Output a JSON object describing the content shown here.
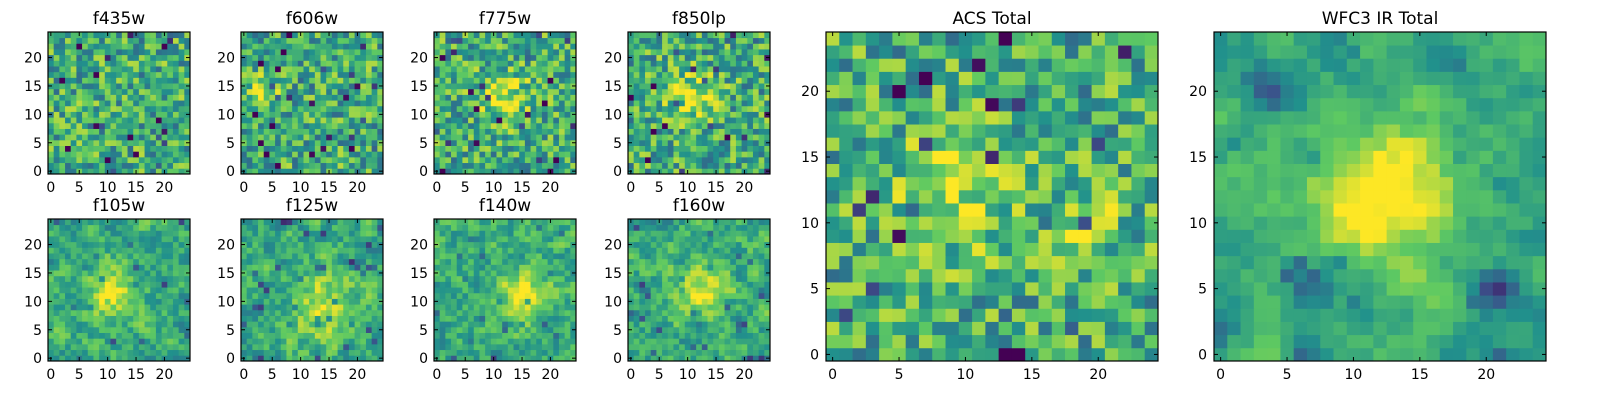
{
  "figure": {
    "colormap": [
      "#440154",
      "#3b528b",
      "#21918c",
      "#5ec962",
      "#fde725"
    ]
  },
  "chart_data": [
    {
      "type": "heatmap",
      "title": "f435w",
      "grid": [
        25,
        25
      ],
      "xlim": [
        0,
        24
      ],
      "ylim": [
        0,
        24
      ],
      "xticks": [
        0,
        5,
        10,
        15,
        20
      ],
      "yticks": [
        0,
        5,
        10,
        15,
        20
      ],
      "seed": 11,
      "smooth": 0,
      "blobs": []
    },
    {
      "type": "heatmap",
      "title": "f606w",
      "grid": [
        25,
        25
      ],
      "xlim": [
        0,
        24
      ],
      "ylim": [
        0,
        24
      ],
      "xticks": [
        0,
        5,
        10,
        15,
        20
      ],
      "yticks": [
        0,
        5,
        10,
        15,
        20
      ],
      "seed": 23,
      "smooth": 0,
      "blobs": [
        {
          "x": 4,
          "y": 14,
          "amp": 0.25,
          "sigma": 2
        }
      ]
    },
    {
      "type": "heatmap",
      "title": "f775w",
      "grid": [
        25,
        25
      ],
      "xlim": [
        0,
        24
      ],
      "ylim": [
        0,
        24
      ],
      "xticks": [
        0,
        5,
        10,
        15,
        20
      ],
      "yticks": [
        0,
        5,
        10,
        15,
        20
      ],
      "seed": 37,
      "smooth": 0,
      "blobs": [
        {
          "x": 12,
          "y": 13,
          "amp": 0.3,
          "sigma": 3
        }
      ]
    },
    {
      "type": "heatmap",
      "title": "f850lp",
      "grid": [
        25,
        25
      ],
      "xlim": [
        0,
        24
      ],
      "ylim": [
        0,
        24
      ],
      "xticks": [
        0,
        5,
        10,
        15,
        20
      ],
      "yticks": [
        0,
        5,
        10,
        15,
        20
      ],
      "seed": 41,
      "smooth": 0,
      "blobs": [
        {
          "x": 11,
          "y": 13,
          "amp": 0.3,
          "sigma": 3
        }
      ]
    },
    {
      "type": "heatmap",
      "title": "f105w",
      "grid": [
        25,
        25
      ],
      "xlim": [
        0,
        24
      ],
      "ylim": [
        0,
        24
      ],
      "xticks": [
        0,
        5,
        10,
        15,
        20
      ],
      "yticks": [
        0,
        5,
        10,
        15,
        20
      ],
      "seed": 53,
      "smooth": 1,
      "blobs": [
        {
          "x": 11,
          "y": 11,
          "amp": 0.35,
          "sigma": 3
        }
      ]
    },
    {
      "type": "heatmap",
      "title": "f125w",
      "grid": [
        25,
        25
      ],
      "xlim": [
        0,
        24
      ],
      "ylim": [
        0,
        24
      ],
      "xticks": [
        0,
        5,
        10,
        15,
        20
      ],
      "yticks": [
        0,
        5,
        10,
        15,
        20
      ],
      "seed": 67,
      "smooth": 1,
      "blobs": [
        {
          "x": 14,
          "y": 9,
          "amp": 0.3,
          "sigma": 4
        }
      ]
    },
    {
      "type": "heatmap",
      "title": "f140w",
      "grid": [
        25,
        25
      ],
      "xlim": [
        0,
        24
      ],
      "ylim": [
        0,
        24
      ],
      "xticks": [
        0,
        5,
        10,
        15,
        20
      ],
      "yticks": [
        0,
        5,
        10,
        15,
        20
      ],
      "seed": 79,
      "smooth": 1,
      "blobs": [
        {
          "x": 15,
          "y": 11,
          "amp": 0.35,
          "sigma": 3
        }
      ]
    },
    {
      "type": "heatmap",
      "title": "f160w",
      "grid": [
        25,
        25
      ],
      "xlim": [
        0,
        24
      ],
      "ylim": [
        0,
        24
      ],
      "xticks": [
        0,
        5,
        10,
        15,
        20
      ],
      "yticks": [
        0,
        5,
        10,
        15,
        20
      ],
      "seed": 83,
      "smooth": 1,
      "blobs": [
        {
          "x": 12,
          "y": 12,
          "amp": 0.35,
          "sigma": 3
        }
      ]
    },
    {
      "type": "heatmap",
      "title": "ACS Total",
      "grid": [
        25,
        25
      ],
      "xlim": [
        0,
        24
      ],
      "ylim": [
        0,
        24
      ],
      "xticks": [
        0,
        5,
        10,
        15,
        20
      ],
      "yticks": [
        0,
        5,
        10,
        15,
        20
      ],
      "seed": 97,
      "smooth": 0,
      "blobs": [
        {
          "x": 9,
          "y": 12,
          "amp": 0.3,
          "sigma": 3
        },
        {
          "x": 19,
          "y": 10,
          "amp": 0.25,
          "sigma": 2
        }
      ]
    },
    {
      "type": "heatmap",
      "title": "WFC3 IR Total",
      "grid": [
        25,
        25
      ],
      "xlim": [
        0,
        24
      ],
      "ylim": [
        0,
        24
      ],
      "xticks": [
        0,
        5,
        10,
        15,
        20
      ],
      "yticks": [
        0,
        5,
        10,
        15,
        20
      ],
      "seed": 101,
      "smooth": 2,
      "blobs": [
        {
          "x": 12,
          "y": 12,
          "amp": 0.45,
          "sigma": 4
        },
        {
          "x": 4,
          "y": 20,
          "amp": -0.3,
          "sigma": 1.5
        },
        {
          "x": 21,
          "y": 5,
          "amp": -0.35,
          "sigma": 1.2
        },
        {
          "x": 7,
          "y": 5,
          "amp": -0.3,
          "sigma": 1.2
        }
      ]
    }
  ]
}
